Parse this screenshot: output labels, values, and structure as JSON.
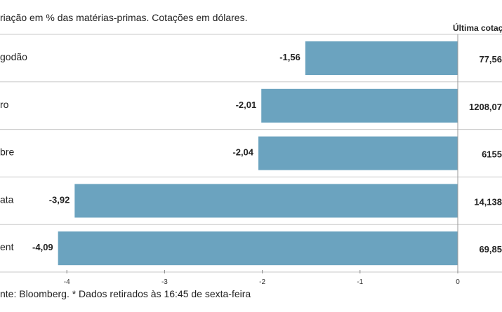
{
  "header": {
    "subtitle": "riação em % das matérias-primas. Cotações em dólares.",
    "last_column_header": "Última cotaç"
  },
  "chart_data": {
    "type": "bar",
    "orientation": "horizontal",
    "categories": [
      "godão",
      "ro",
      "bre",
      "ata",
      "ent"
    ],
    "series": [
      {
        "values": [
          -1.56,
          -2.01,
          -2.04,
          -3.92,
          -4.09
        ]
      }
    ],
    "value_labels": [
      "-1,56",
      "-2,01",
      "-2,04",
      "-3,92",
      "-4,09"
    ],
    "last_quote_labels": [
      "77,56",
      "1208,07",
      "6155",
      "14,138",
      "69,85"
    ],
    "x_ticks": [
      -4,
      -3,
      -2,
      -1,
      0
    ],
    "x_tick_labels": [
      "-4",
      "-3",
      "-2",
      "-1",
      "0"
    ],
    "xlim": [
      -4.1,
      0
    ],
    "bar_color": "#6ba3bf",
    "grid": false,
    "source": "nte: Bloomberg.  * Dados retirados às 16:45 de sexta-feira"
  }
}
